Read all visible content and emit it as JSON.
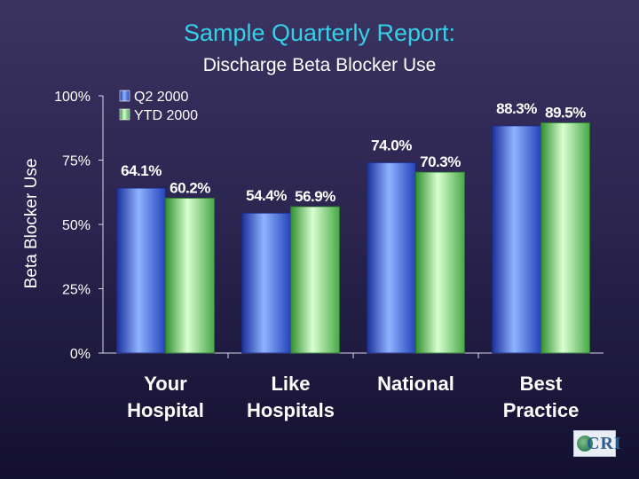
{
  "chart_data": {
    "type": "bar",
    "title": "Sample Quarterly Report:",
    "subtitle": "Discharge Beta Blocker Use",
    "ylabel": "Beta Blocker Use",
    "xlabel": "",
    "ylim": [
      0,
      100
    ],
    "yticks": [
      "0%",
      "25%",
      "50%",
      "75%",
      "100%"
    ],
    "categories": [
      [
        "Your",
        "Hospital"
      ],
      [
        "Like",
        "Hospitals"
      ],
      [
        "National"
      ],
      [
        "Best",
        "Practice"
      ]
    ],
    "series": [
      {
        "name": "Q2 2000",
        "values": [
          64.1,
          54.4,
          74.0,
          88.3
        ],
        "labels": [
          "64.1%",
          "54.4%",
          "74.0%",
          "88.3%"
        ],
        "color": "#4f79d8"
      },
      {
        "name": "YTD 2000",
        "values": [
          60.2,
          56.9,
          70.3,
          89.5
        ],
        "labels": [
          "60.2%",
          "56.9%",
          "70.3%",
          "89.5%"
        ],
        "color": "#7ad07a"
      }
    ],
    "legend_position": "top-left",
    "grid": false
  },
  "logo": {
    "text": "CRI"
  }
}
